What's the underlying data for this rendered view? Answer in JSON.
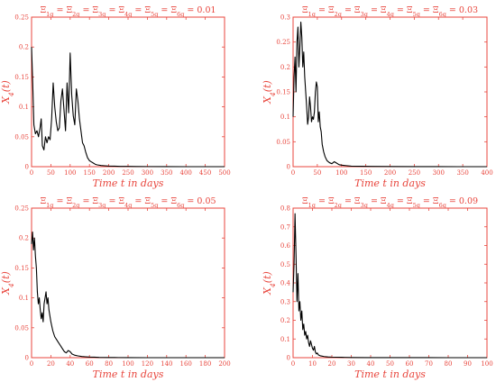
{
  "chart_data": [
    {
      "type": "line",
      "title": "Ξ1q = Ξ2q = Ξ3q = Ξ4q = Ξ5q = Ξ6q = 0.01",
      "xlabel": "Time t in days",
      "ylabel": "X4(t)",
      "xlim": [
        0,
        500
      ],
      "ylim": [
        0,
        0.25
      ],
      "xticks": [
        0,
        50,
        100,
        150,
        200,
        250,
        300,
        350,
        400,
        450,
        500
      ],
      "yticks": [
        0,
        0.05,
        0.1,
        0.15,
        0.2,
        0.25
      ],
      "x": [
        0,
        3,
        6,
        10,
        14,
        18,
        22,
        25,
        28,
        32,
        36,
        40,
        44,
        48,
        52,
        56,
        60,
        64,
        68,
        72,
        76,
        80,
        84,
        88,
        92,
        96,
        100,
        104,
        108,
        112,
        116,
        120,
        124,
        128,
        132,
        136,
        140,
        145,
        150,
        155,
        160,
        165,
        170,
        180,
        190,
        200,
        215,
        230,
        250,
        270,
        300,
        350,
        400,
        450,
        500
      ],
      "values": [
        0.2,
        0.14,
        0.07,
        0.055,
        0.06,
        0.05,
        0.065,
        0.08,
        0.035,
        0.028,
        0.05,
        0.04,
        0.05,
        0.045,
        0.08,
        0.14,
        0.1,
        0.075,
        0.06,
        0.065,
        0.11,
        0.13,
        0.095,
        0.06,
        0.14,
        0.09,
        0.19,
        0.12,
        0.085,
        0.07,
        0.13,
        0.11,
        0.08,
        0.06,
        0.04,
        0.035,
        0.025,
        0.015,
        0.01,
        0.008,
        0.006,
        0.004,
        0.003,
        0.002,
        0.0015,
        0.001,
        0.0008,
        0.0005,
        0.0004,
        0.0003,
        0.0002,
        0.0001,
        0,
        0,
        0
      ]
    },
    {
      "type": "line",
      "title": "Ξ1q = Ξ2q = Ξ3q = Ξ4q = Ξ5q = Ξ6q = 0.03",
      "xlabel": "Time t in days",
      "ylabel": "X4(t)",
      "xlim": [
        0,
        400
      ],
      "ylim": [
        0,
        0.3
      ],
      "xticks": [
        0,
        50,
        100,
        150,
        200,
        250,
        300,
        350,
        400
      ],
      "yticks": [
        0,
        0.05,
        0.1,
        0.15,
        0.2,
        0.25,
        0.3
      ],
      "x": [
        0,
        2,
        4,
        6,
        8,
        10,
        12,
        14,
        16,
        18,
        20,
        22,
        24,
        26,
        28,
        30,
        32,
        34,
        36,
        38,
        40,
        42,
        44,
        46,
        48,
        50,
        52,
        54,
        56,
        58,
        60,
        63,
        66,
        70,
        75,
        80,
        85,
        90,
        95,
        100,
        110,
        120,
        140,
        160,
        200,
        250,
        300,
        350,
        400
      ],
      "values": [
        0.1,
        0.18,
        0.22,
        0.15,
        0.25,
        0.28,
        0.2,
        0.24,
        0.29,
        0.26,
        0.2,
        0.23,
        0.18,
        0.15,
        0.12,
        0.085,
        0.1,
        0.14,
        0.12,
        0.09,
        0.1,
        0.095,
        0.11,
        0.15,
        0.17,
        0.16,
        0.09,
        0.11,
        0.08,
        0.07,
        0.045,
        0.03,
        0.02,
        0.012,
        0.008,
        0.006,
        0.01,
        0.007,
        0.004,
        0.003,
        0.002,
        0.001,
        0.0008,
        0.0005,
        0.0003,
        0.0002,
        0.0001,
        0,
        0
      ]
    },
    {
      "type": "line",
      "title": "Ξ1q = Ξ2q = Ξ3q = Ξ4q = Ξ5q = Ξ6q = 0.05",
      "xlabel": "Time t in days",
      "ylabel": "X4(t)",
      "xlim": [
        0,
        200
      ],
      "ylim": [
        0,
        0.25
      ],
      "xticks": [
        0,
        20,
        40,
        60,
        80,
        100,
        120,
        140,
        160,
        180,
        200
      ],
      "yticks": [
        0,
        0.05,
        0.1,
        0.15,
        0.2,
        0.25
      ],
      "x": [
        0,
        1,
        2,
        3,
        4,
        5,
        6,
        7,
        8,
        9,
        10,
        11,
        12,
        13,
        14,
        15,
        16,
        17,
        18,
        19,
        20,
        22,
        24,
        26,
        28,
        30,
        32,
        34,
        36,
        38,
        40,
        42,
        45,
        48,
        52,
        56,
        60,
        65,
        70,
        80,
        90,
        100,
        120,
        140,
        160,
        180,
        200
      ],
      "values": [
        0.19,
        0.21,
        0.18,
        0.2,
        0.17,
        0.15,
        0.11,
        0.09,
        0.1,
        0.08,
        0.065,
        0.075,
        0.06,
        0.09,
        0.1,
        0.11,
        0.09,
        0.1,
        0.08,
        0.07,
        0.06,
        0.045,
        0.035,
        0.03,
        0.025,
        0.02,
        0.015,
        0.01,
        0.008,
        0.012,
        0.01,
        0.006,
        0.004,
        0.003,
        0.002,
        0.0015,
        0.001,
        0.0008,
        0.0005,
        0.0003,
        0.0002,
        0.0001,
        0,
        0,
        0,
        0,
        0
      ]
    },
    {
      "type": "line",
      "title": "Ξ1q = Ξ2q = Ξ3q = Ξ4q = Ξ5q = Ξ6q = 0.09",
      "xlabel": "Time t in days",
      "ylabel": "X4(t)",
      "xlim": [
        0,
        100
      ],
      "ylim": [
        0,
        0.8
      ],
      "xticks": [
        0,
        10,
        20,
        30,
        40,
        50,
        60,
        70,
        80,
        90,
        100
      ],
      "yticks": [
        0,
        0.1,
        0.2,
        0.3,
        0.4,
        0.5,
        0.6,
        0.7,
        0.8
      ],
      "x": [
        0,
        0.5,
        1,
        1.5,
        2,
        2.5,
        3,
        3.5,
        4,
        4.5,
        5,
        5.5,
        6,
        6.5,
        7,
        7.5,
        8,
        8.5,
        9,
        9.5,
        10,
        10.5,
        11,
        11.5,
        12,
        12.5,
        13,
        14,
        15,
        16,
        18,
        20,
        25,
        30,
        40,
        50,
        60,
        70,
        80,
        90,
        100
      ],
      "values": [
        0.35,
        0.5,
        0.77,
        0.55,
        0.3,
        0.45,
        0.25,
        0.3,
        0.2,
        0.25,
        0.15,
        0.18,
        0.12,
        0.14,
        0.1,
        0.12,
        0.08,
        0.06,
        0.09,
        0.07,
        0.05,
        0.04,
        0.06,
        0.03,
        0.02,
        0.025,
        0.015,
        0.01,
        0.008,
        0.006,
        0.004,
        0.003,
        0.002,
        0.001,
        0.0005,
        0.0003,
        0.0002,
        0.0001,
        0,
        0,
        0
      ]
    }
  ]
}
